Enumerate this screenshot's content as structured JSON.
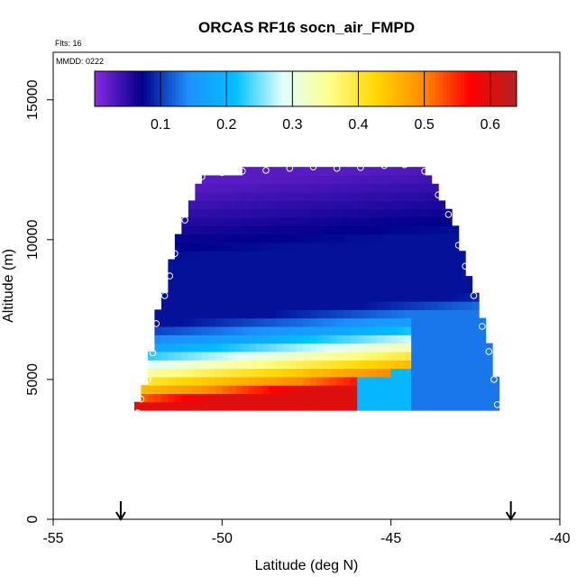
{
  "chart_data": {
    "type": "heatmap",
    "title": "ORCAS RF16 socn_air_FMPD",
    "annotations": {
      "flights": "Flts: 16",
      "date": "MMDD: 0222"
    },
    "xlabel": "Latitude (deg N)",
    "ylabel": "Altitude (m)",
    "xlim": [
      -55,
      -40
    ],
    "ylim": [
      0,
      16700
    ],
    "xticks": [
      -55,
      -50,
      -45,
      -40
    ],
    "xtick_labels": [
      "-55",
      "-50",
      "-45",
      "-40"
    ],
    "yticks": [
      0,
      5000,
      10000,
      15000
    ],
    "ytick_labels": [
      "0",
      "5000",
      "10000",
      "15000"
    ],
    "colorbar": {
      "range": [
        0,
        0.64
      ],
      "ticks": [
        0.1,
        0.2,
        0.3,
        0.4,
        0.5,
        0.6
      ],
      "tick_labels": [
        "0.1",
        "0.2",
        "0.3",
        "0.4",
        "0.5",
        "0.6"
      ],
      "colors": [
        "#8a2be2",
        "#00008b",
        "#1e90ff",
        "#00bfff",
        "#e0ffff",
        "#ffff8c",
        "#ffd700",
        "#ff8c00",
        "#ff0000",
        "#b22222"
      ]
    },
    "grid": {
      "lat_start": -52.6,
      "lat_step": 0.2,
      "n_cols": 54,
      "alt_start": 3900,
      "alt_step": 300,
      "n_rows": 30
    },
    "sample_points": [
      [
        -52.5,
        3800
      ],
      [
        -52.4,
        4300
      ],
      [
        -52.2,
        5000
      ],
      [
        -52.05,
        5950
      ],
      [
        -51.95,
        7000
      ],
      [
        -51.7,
        8000
      ],
      [
        -51.55,
        8700
      ],
      [
        -51.4,
        9500
      ],
      [
        -51.1,
        10700
      ],
      [
        -50.6,
        12250
      ],
      [
        -50.0,
        12400
      ],
      [
        -49.4,
        12450
      ],
      [
        -48.7,
        12480
      ],
      [
        -48.0,
        12550
      ],
      [
        -47.3,
        12600
      ],
      [
        -46.6,
        12550
      ],
      [
        -45.9,
        12580
      ],
      [
        -45.2,
        12650
      ],
      [
        -44.6,
        12680
      ],
      [
        -44.0,
        12450
      ],
      [
        -43.6,
        11600
      ],
      [
        -43.3,
        10900
      ],
      [
        -43.0,
        9800
      ],
      [
        -42.8,
        9050
      ],
      [
        -42.55,
        8000
      ],
      [
        -42.3,
        6900
      ],
      [
        -42.1,
        6000
      ],
      [
        -41.95,
        5000
      ],
      [
        -41.85,
        4100
      ]
    ],
    "arrows_lat": [
      -53.0,
      -41.45
    ]
  }
}
